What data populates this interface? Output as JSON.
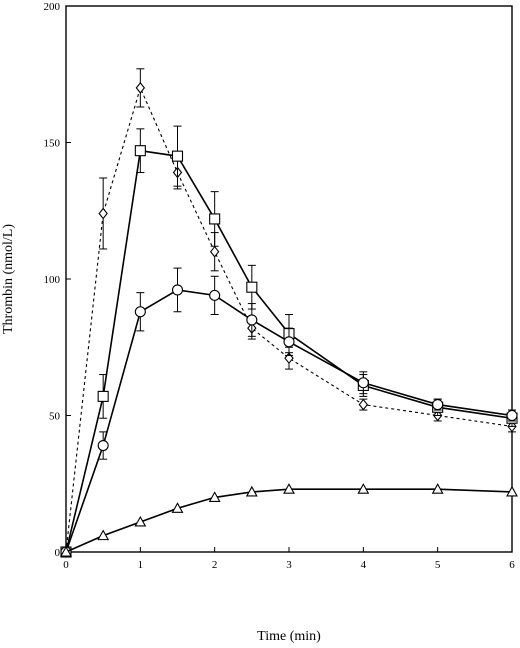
{
  "chart_data": {
    "type": "line",
    "title": "",
    "xlabel": "Time (min)",
    "ylabel": "Thrombin (nmol/L)",
    "xlim": [
      0,
      6
    ],
    "ylim": [
      0,
      200
    ],
    "x_ticks": [
      0,
      1,
      2,
      3,
      4,
      5,
      6
    ],
    "y_ticks": [
      0,
      50,
      100,
      150,
      200
    ],
    "grid": false,
    "series": [
      {
        "marker": "diamond",
        "line_style": "dashed",
        "x": [
          0,
          0.5,
          1,
          1.5,
          2,
          2.5,
          3,
          4,
          5,
          6
        ],
        "y": [
          0,
          124,
          170,
          139,
          110,
          82,
          71,
          54,
          50,
          46
        ],
        "error": [
          0,
          13,
          7,
          6,
          7,
          4,
          4,
          2,
          2,
          2
        ]
      },
      {
        "marker": "square",
        "line_style": "solid",
        "x": [
          0,
          0.5,
          1,
          1.5,
          2,
          2.5,
          3,
          4,
          5,
          6
        ],
        "y": [
          0,
          57,
          147,
          145,
          122,
          97,
          80,
          61,
          53,
          49
        ],
        "error": [
          0,
          8,
          8,
          11,
          10,
          8,
          7,
          4,
          3,
          3
        ]
      },
      {
        "marker": "circle",
        "line_style": "solid",
        "x": [
          0,
          0.5,
          1,
          1.5,
          2,
          2.5,
          3,
          4,
          5,
          6
        ],
        "y": [
          0,
          39,
          88,
          96,
          94,
          85,
          77,
          62,
          54,
          50
        ],
        "error": [
          0,
          5,
          7,
          8,
          7,
          6,
          5,
          4,
          2,
          2
        ]
      },
      {
        "marker": "triangle",
        "line_style": "solid",
        "x": [
          0,
          0.5,
          1,
          1.5,
          2,
          2.5,
          3,
          4,
          5,
          6
        ],
        "y": [
          0,
          6,
          11,
          16,
          20,
          22,
          23,
          23,
          23,
          22
        ],
        "error": [
          0,
          0,
          0,
          0,
          0,
          0,
          0,
          0,
          0,
          0
        ]
      }
    ]
  }
}
